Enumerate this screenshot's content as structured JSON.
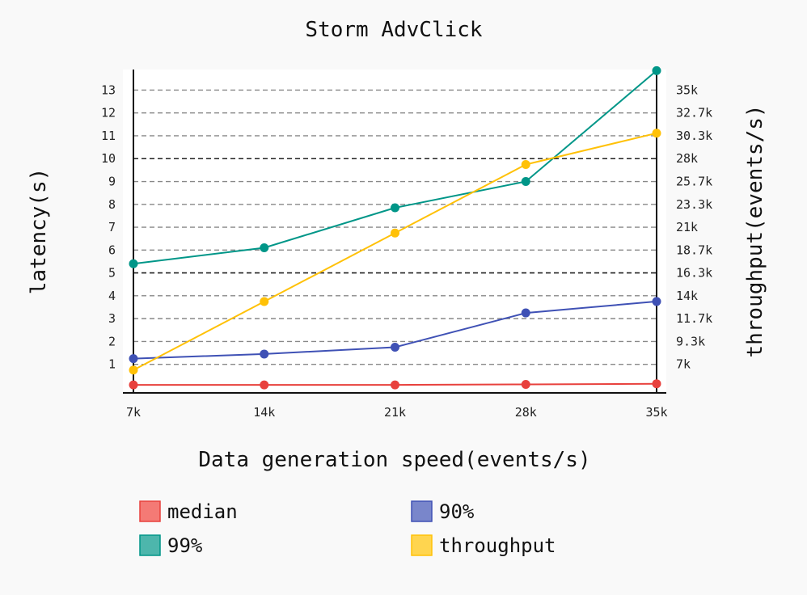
{
  "chart_data": {
    "type": "line",
    "title": "Storm AdvClick",
    "xlabel": "Data generation speed(events/s)",
    "ylabel": "latency(s)",
    "y2label": "throughput(events/s)",
    "categories": [
      "7k",
      "14k",
      "21k",
      "28k",
      "35k"
    ],
    "y_ticks": [
      1,
      2,
      3,
      4,
      5,
      6,
      7,
      8,
      9,
      10,
      11,
      12,
      13
    ],
    "y2_ticks": [
      "7k",
      "9.3k",
      "11.7k",
      "14k",
      "16.3k",
      "18.7k",
      "21k",
      "23.3k",
      "25.7k",
      "28k",
      "30.3k",
      "32.7k",
      "35k"
    ],
    "ylim": [
      -0.25,
      13.9
    ],
    "y2lim": [
      4666.7,
      37700
    ],
    "grid": true,
    "highlight_gridlines": [
      5,
      10
    ],
    "legend_position": "bottom",
    "series": [
      {
        "name": "median",
        "axis": "left",
        "color": "#e8413d",
        "legend_fill": "#f47a75",
        "values": [
          0.1,
          0.1,
          0.1,
          0.12,
          0.15
        ]
      },
      {
        "name": "90%",
        "axis": "left",
        "color": "#3f51b5",
        "legend_fill": "#7986cb",
        "values": [
          1.25,
          1.45,
          1.75,
          3.25,
          3.75
        ]
      },
      {
        "name": "99%",
        "axis": "left",
        "color": "#009688",
        "legend_fill": "#4db6ac",
        "values": [
          5.4,
          6.1,
          7.85,
          9.0,
          13.85
        ]
      },
      {
        "name": "throughput",
        "axis": "right",
        "color": "#ffc107",
        "legend_fill": "#ffd54f",
        "values": [
          7000,
          14000,
          21000,
          28000,
          31200
        ]
      }
    ]
  }
}
